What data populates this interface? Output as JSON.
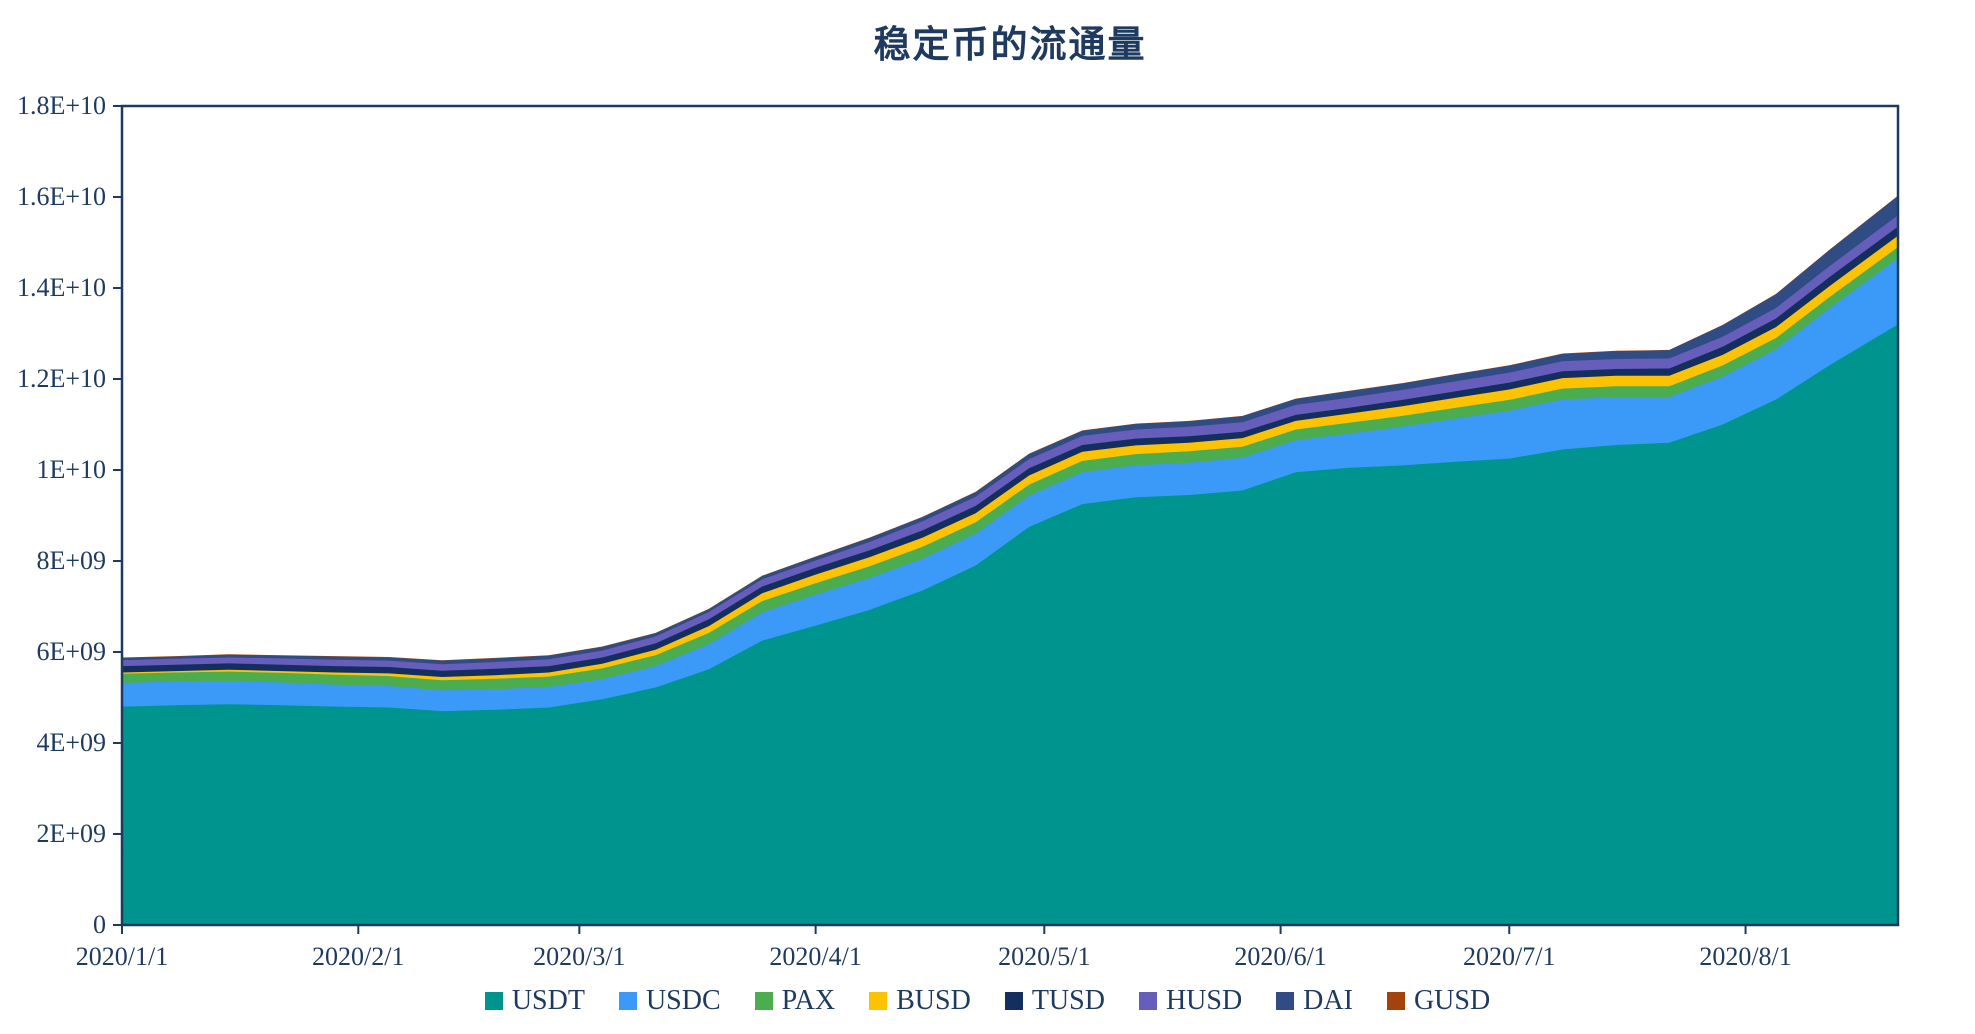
{
  "chart_data": {
    "type": "area",
    "stacked": true,
    "title": "稳定币的流通量",
    "grid": "off",
    "legend_position": "bottom",
    "axis_color": "#1E3A5F",
    "text_color": "#1E3A5F",
    "plot_background": "#FFFFFF",
    "value_scale": 1000000000,
    "x": [
      "2020/1/1",
      "2020/1/8",
      "2020/1/15",
      "2020/1/22",
      "2020/1/29",
      "2020/2/5",
      "2020/2/12",
      "2020/2/19",
      "2020/2/26",
      "2020/3/4",
      "2020/3/11",
      "2020/3/18",
      "2020/3/25",
      "2020/4/1",
      "2020/4/8",
      "2020/4/15",
      "2020/4/22",
      "2020/4/29",
      "2020/5/6",
      "2020/5/13",
      "2020/5/20",
      "2020/5/27",
      "2020/6/3",
      "2020/6/10",
      "2020/6/17",
      "2020/6/24",
      "2020/7/1",
      "2020/7/8",
      "2020/7/15",
      "2020/7/22",
      "2020/7/29",
      "2020/8/5",
      "2020/8/12",
      "2020/8/21"
    ],
    "x_days": [
      0,
      7,
      14,
      21,
      28,
      35,
      42,
      49,
      56,
      63,
      70,
      77,
      84,
      91,
      98,
      105,
      112,
      119,
      126,
      133,
      140,
      147,
      154,
      161,
      168,
      175,
      182,
      189,
      196,
      203,
      210,
      217,
      224,
      233
    ],
    "series": [
      {
        "name": "USDT",
        "color": "#00948E",
        "values": [
          4.8,
          4.83,
          4.85,
          4.83,
          4.8,
          4.78,
          4.7,
          4.73,
          4.78,
          4.96,
          5.22,
          5.62,
          6.25,
          6.58,
          6.92,
          7.35,
          7.9,
          8.75,
          9.25,
          9.4,
          9.45,
          9.55,
          9.95,
          10.05,
          10.1,
          10.18,
          10.25,
          10.45,
          10.55,
          10.6,
          11.0,
          11.55,
          12.3,
          13.2
        ]
      },
      {
        "name": "USDC",
        "color": "#3B99F8",
        "values": [
          0.52,
          0.52,
          0.51,
          0.5,
          0.48,
          0.47,
          0.46,
          0.45,
          0.45,
          0.44,
          0.47,
          0.55,
          0.62,
          0.68,
          0.7,
          0.7,
          0.7,
          0.68,
          0.7,
          0.7,
          0.71,
          0.72,
          0.7,
          0.75,
          0.85,
          0.95,
          1.05,
          1.1,
          1.05,
          1.0,
          1.05,
          1.1,
          1.25,
          1.45
        ]
      },
      {
        "name": "PAX",
        "color": "#4BAD4F",
        "values": [
          0.2,
          0.2,
          0.21,
          0.21,
          0.22,
          0.22,
          0.22,
          0.23,
          0.23,
          0.24,
          0.24,
          0.25,
          0.25,
          0.25,
          0.26,
          0.26,
          0.25,
          0.25,
          0.25,
          0.25,
          0.25,
          0.24,
          0.24,
          0.24,
          0.24,
          0.24,
          0.24,
          0.24,
          0.24,
          0.24,
          0.25,
          0.25,
          0.25,
          0.25
        ]
      },
      {
        "name": "BUSD",
        "color": "#FDC303",
        "values": [
          0.03,
          0.03,
          0.04,
          0.04,
          0.05,
          0.06,
          0.07,
          0.08,
          0.09,
          0.1,
          0.12,
          0.15,
          0.17,
          0.19,
          0.2,
          0.2,
          0.2,
          0.2,
          0.2,
          0.19,
          0.19,
          0.19,
          0.19,
          0.2,
          0.21,
          0.22,
          0.23,
          0.23,
          0.23,
          0.23,
          0.23,
          0.24,
          0.24,
          0.25
        ]
      },
      {
        "name": "TUSD",
        "color": "#142F5F",
        "values": [
          0.14,
          0.14,
          0.14,
          0.14,
          0.14,
          0.14,
          0.14,
          0.14,
          0.14,
          0.14,
          0.14,
          0.15,
          0.15,
          0.15,
          0.15,
          0.16,
          0.16,
          0.16,
          0.15,
          0.15,
          0.14,
          0.14,
          0.13,
          0.13,
          0.14,
          0.14,
          0.15,
          0.15,
          0.15,
          0.16,
          0.18,
          0.19,
          0.2,
          0.2
        ]
      },
      {
        "name": "HUSD",
        "color": "#675DBB",
        "values": [
          0.13,
          0.13,
          0.13,
          0.14,
          0.14,
          0.14,
          0.14,
          0.15,
          0.15,
          0.15,
          0.15,
          0.16,
          0.16,
          0.16,
          0.18,
          0.2,
          0.2,
          0.2,
          0.2,
          0.2,
          0.21,
          0.21,
          0.22,
          0.22,
          0.22,
          0.22,
          0.22,
          0.22,
          0.22,
          0.22,
          0.22,
          0.23,
          0.24,
          0.25
        ]
      },
      {
        "name": "DAI",
        "color": "#2F4C85",
        "values": [
          0.05,
          0.05,
          0.06,
          0.06,
          0.07,
          0.07,
          0.08,
          0.08,
          0.08,
          0.08,
          0.07,
          0.06,
          0.07,
          0.08,
          0.09,
          0.09,
          0.1,
          0.11,
          0.11,
          0.12,
          0.12,
          0.13,
          0.13,
          0.14,
          0.14,
          0.15,
          0.15,
          0.16,
          0.17,
          0.18,
          0.25,
          0.3,
          0.35,
          0.42
        ]
      },
      {
        "name": "GUSD",
        "color": "#A3420D",
        "values": [
          0.01,
          0.01,
          0.01,
          0.01,
          0.01,
          0.01,
          0.01,
          0.01,
          0.01,
          0.01,
          0.01,
          0.01,
          0.01,
          0.01,
          0.01,
          0.01,
          0.01,
          0.01,
          0.01,
          0.01,
          0.01,
          0.01,
          0.01,
          0.01,
          0.01,
          0.01,
          0.01,
          0.01,
          0.01,
          0.01,
          0.01,
          0.01,
          0.01,
          0.01
        ]
      }
    ],
    "x_axis": {
      "tick_labels": [
        "2020/1/1",
        "2020/2/1",
        "2020/3/1",
        "2020/4/1",
        "2020/5/1",
        "2020/6/1",
        "2020/7/1",
        "2020/8/1"
      ],
      "tick_days": [
        0,
        31,
        60,
        91,
        121,
        152,
        182,
        213
      ]
    },
    "y_axis": {
      "tick_labels": [
        "0",
        "2E+09",
        "4E+09",
        "6E+09",
        "8E+09",
        "1E+10",
        "1.2E+10",
        "1.4E+10",
        "1.6E+10",
        "1.8E+10"
      ],
      "tick_values": [
        0,
        2,
        4,
        6,
        8,
        10,
        12,
        14,
        16,
        18
      ],
      "min": 0,
      "max": 18
    }
  }
}
